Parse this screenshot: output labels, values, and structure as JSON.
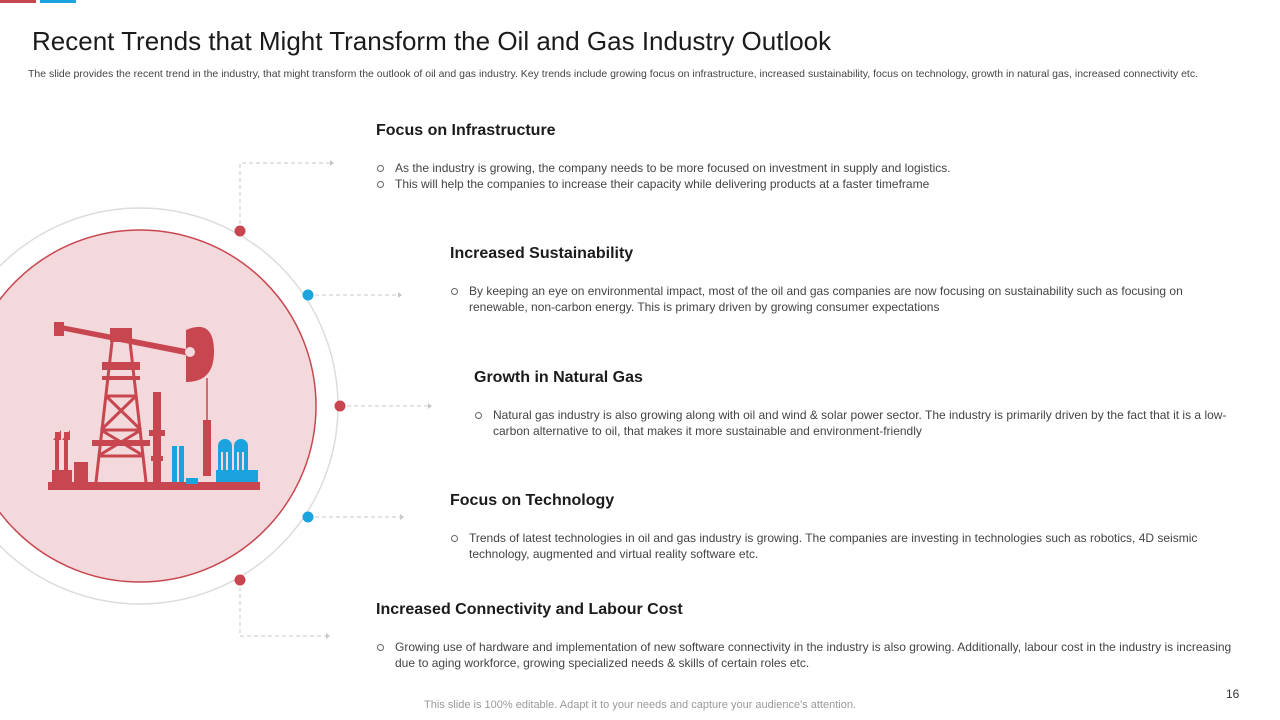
{
  "slide": {
    "title": "Recent Trends that Might Transform the Oil and Gas Industry Outlook",
    "subtitle": "The slide provides the recent trend in the industry, that might transform the outlook of oil and gas industry. Key trends include growing focus on infrastructure, increased sustainability, focus on technology, growth in natural gas, increased connectivity etc.",
    "footer": "This slide is 100% editable. Adapt it to your needs and capture your audience's attention.",
    "page_number": "16"
  },
  "colors": {
    "accent_red": "#c8464f",
    "accent_blue": "#1aa3dc",
    "circle_fill": "#f3d9dc",
    "connector_gray": "#c8c8c8"
  },
  "graphic": {
    "icon": "oil-pump-jack-and-refinery-icon"
  },
  "trends": [
    {
      "title": "Focus on Infrastructure",
      "bullets": [
        "As the industry is growing, the company needs to be more focused on investment in supply and logistics.",
        "This will help the companies to increase their capacity while delivering products at a faster timeframe"
      ]
    },
    {
      "title": "Increased Sustainability",
      "bullets": [
        "By keeping an eye on environmental impact, most of the oil and gas companies are now focusing on sustainability such as focusing on renewable, non-carbon energy. This is primary driven by growing consumer expectations"
      ]
    },
    {
      "title": "Growth in Natural Gas",
      "bullets": [
        "Natural gas industry is also growing along with oil and wind & solar power sector. The industry is primarily driven by the fact that it is a low-carbon alternative to oil, that makes it more sustainable and environment-friendly"
      ]
    },
    {
      "title": "Focus on Technology",
      "bullets": [
        "Trends of latest technologies in oil and gas industry is growing. The companies are investing in technologies such as robotics, 4D seismic technology, augmented and virtual reality software etc."
      ]
    },
    {
      "title": "Increased Connectivity and Labour Cost",
      "bullets": [
        "Growing use of hardware and implementation of new software connectivity in the industry is also growing. Additionally, labour cost in the industry is increasing due to aging workforce, growing specialized needs & skills of certain roles etc."
      ]
    }
  ]
}
